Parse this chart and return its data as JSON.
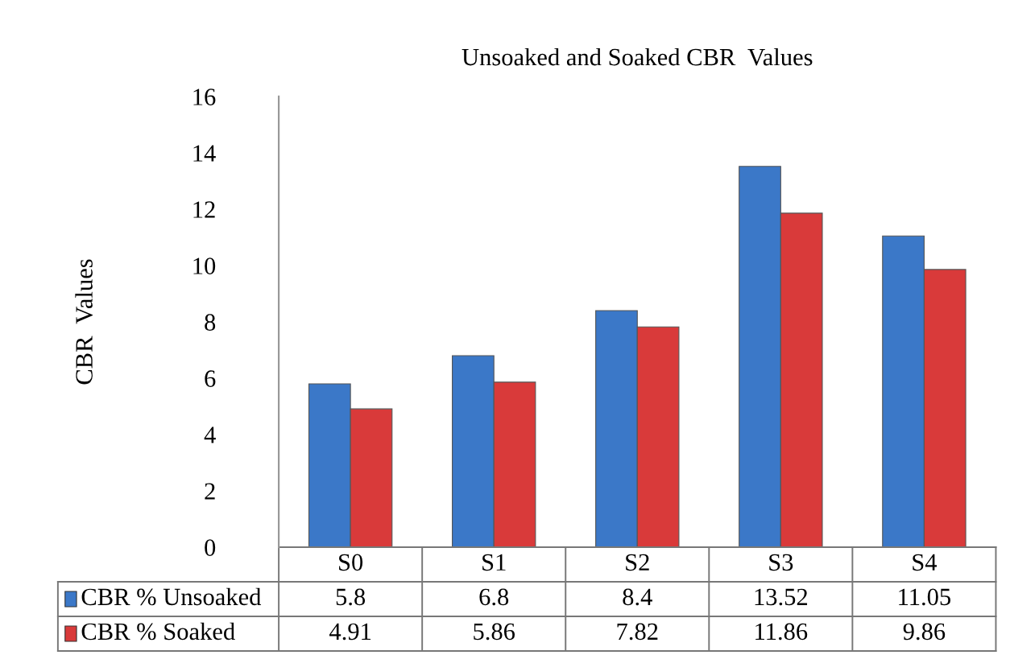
{
  "chart_data": {
    "type": "bar",
    "title": "Unsoaked and Soaked CBR  Values",
    "ylabel": "CBR  Values",
    "categories": [
      "S0",
      "S1",
      "S2",
      "S3",
      "S4"
    ],
    "series": [
      {
        "name": "CBR % Unsoaked",
        "color": "#3b78c8",
        "values": [
          5.8,
          6.8,
          8.4,
          13.52,
          11.05
        ]
      },
      {
        "name": "CBR % Soaked",
        "color": "#d93a3a",
        "values": [
          4.91,
          5.86,
          7.82,
          11.86,
          9.86
        ]
      }
    ],
    "ylim": [
      0,
      16
    ],
    "yticks": [
      0,
      2,
      4,
      6,
      8,
      10,
      12,
      14,
      16
    ],
    "grid": false,
    "data_labels": true,
    "legend": "bottom"
  }
}
